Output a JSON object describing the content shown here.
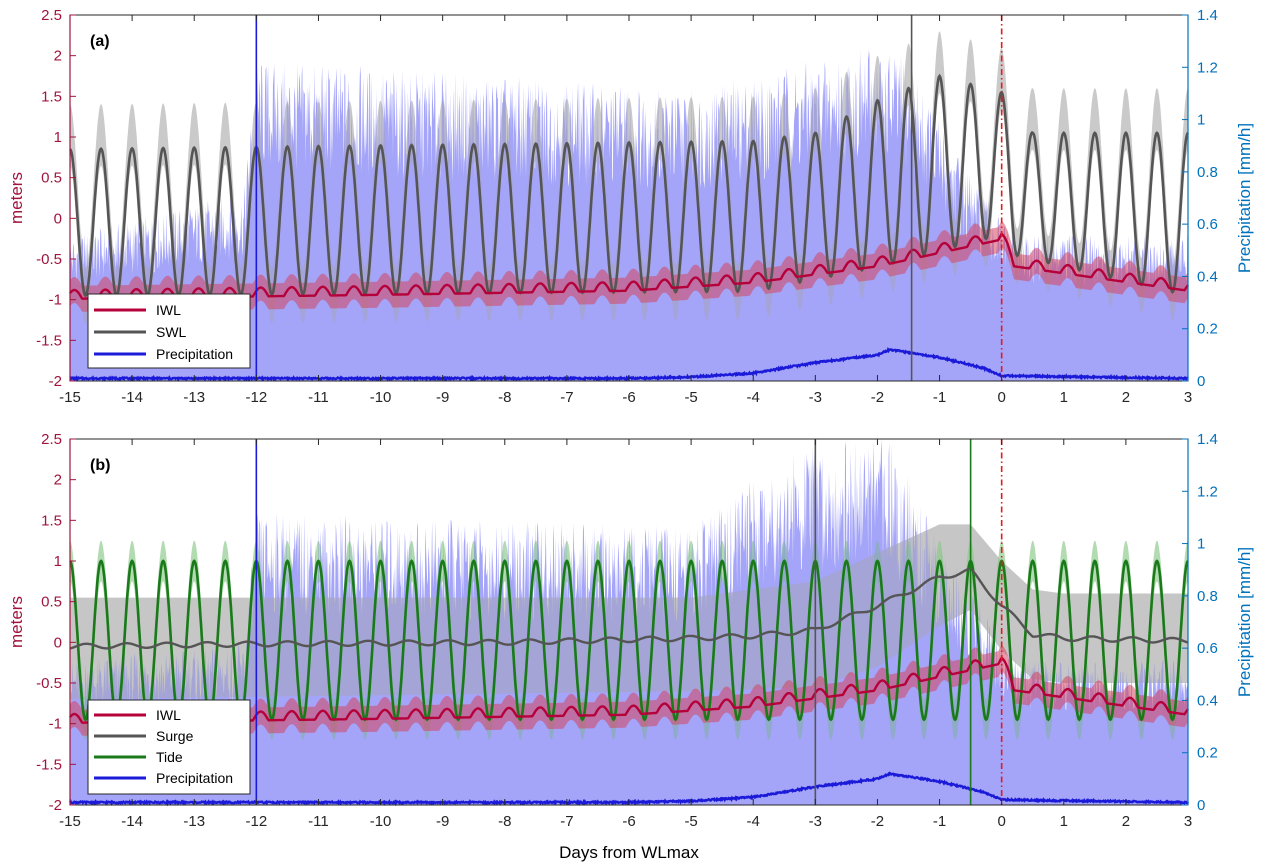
{
  "colors": {
    "iwl": "#b5003a",
    "iwl_band": "#d4465e",
    "swl": "#555555",
    "swl_band": "#b8b8b8",
    "precip": "#1a1ad8",
    "precip_band": "#7f7ff5",
    "tide": "#1a7a1a",
    "tide_band": "#88c888",
    "left_axis": "#a0153e",
    "right_axis": "#0072bd",
    "red_vline": "#e41a1c"
  },
  "figure": {
    "xlabel": "Days from WLmax",
    "ylabel_left": "meters",
    "ylabel_right": "Precipitation [mm/h]"
  },
  "chart_data": [
    {
      "type": "line",
      "panel": "(a)",
      "xlim": [
        -15,
        3
      ],
      "ylim_left": [
        -2,
        2.5
      ],
      "ylim_right": [
        0,
        1.4
      ],
      "xticks": [
        "-15",
        "-14",
        "-13",
        "-12",
        "-11",
        "-10",
        "-9",
        "-8",
        "-7",
        "-6",
        "-5",
        "-4",
        "-3",
        "-2",
        "-1",
        "0",
        "1",
        "2",
        "3"
      ],
      "yticks_left": [
        "-2",
        "-1.5",
        "-1",
        "-0.5",
        "0",
        "0.5",
        "1",
        "1.5",
        "2",
        "2.5"
      ],
      "yticks_right": [
        "0",
        "0.2",
        "0.4",
        "0.6",
        "0.8",
        "1",
        "1.2",
        "1.4"
      ],
      "legend": [
        "IWL",
        "SWL",
        "Precipitation"
      ],
      "legend_position": "bottom-left",
      "vlines": [
        {
          "series": "Precipitation",
          "x": -12
        },
        {
          "series": "SWL",
          "x": -1.45
        },
        {
          "series": "IWL",
          "x": 0,
          "style": "dash-dot"
        }
      ],
      "series": [
        {
          "name": "IWL",
          "axis": "left",
          "mean_trend": {
            "x": [
              -15,
              -10,
              -6,
              -4,
              -2,
              0,
              0.2,
              3
            ],
            "y": [
              -0.95,
              -0.9,
              -0.85,
              -0.75,
              -0.55,
              -0.22,
              -0.55,
              -0.85
            ]
          },
          "band_halfwidth": 0.16,
          "ripple_amplitude": 0.12
        },
        {
          "name": "SWL",
          "axis": "left",
          "tide_period_days": 0.5,
          "trough_levels": {
            "x": [
              -15,
              -4,
              -2,
              0,
              0.2,
              3
            ],
            "y": [
              -0.95,
              -0.9,
              -0.6,
              -0.2,
              -0.45,
              -0.95
            ]
          },
          "peak_levels": {
            "x": [
              -15,
              -4,
              -3,
              -2,
              -1,
              0,
              0.5,
              3
            ],
            "y": [
              0.85,
              0.95,
              1.05,
              1.45,
              1.75,
              1.55,
              1.05,
              1.05
            ]
          },
          "band_upper_offset": 0.55,
          "band_lower_offset": 0.35
        },
        {
          "name": "Precipitation",
          "axis": "right",
          "median": {
            "x": [
              -15,
              -6,
              -5,
              -4,
              -3,
              -2,
              -1.8,
              -1,
              -0.3,
              0,
              3
            ],
            "y": [
              0.01,
              0.01,
              0.015,
              0.03,
              0.07,
              0.1,
              0.12,
              0.09,
              0.05,
              0.02,
              0.01
            ]
          },
          "band_low": 0,
          "band_high": {
            "x": [
              -15,
              -12.2,
              -12,
              -5,
              -2,
              -1.5,
              -0.5,
              0,
              0.3,
              3
            ],
            "y": [
              0.5,
              0.65,
              1.1,
              1.0,
              1.15,
              1.1,
              0.7,
              0.55,
              0.5,
              0.5
            ]
          }
        }
      ]
    },
    {
      "type": "line",
      "panel": "(b)",
      "xlim": [
        -15,
        3
      ],
      "ylim_left": [
        -2,
        2.5
      ],
      "ylim_right": [
        0,
        1.4
      ],
      "xticks": [
        "-15",
        "-14",
        "-13",
        "-12",
        "-11",
        "-10",
        "-9",
        "-8",
        "-7",
        "-6",
        "-5",
        "-4",
        "-3",
        "-2",
        "-1",
        "0",
        "1",
        "2",
        "3"
      ],
      "yticks_left": [
        "-2",
        "-1.5",
        "-1",
        "-0.5",
        "0",
        "0.5",
        "1",
        "1.5",
        "2",
        "2.5"
      ],
      "yticks_right": [
        "0",
        "0.2",
        "0.4",
        "0.6",
        "0.8",
        "1",
        "1.2",
        "1.4"
      ],
      "legend": [
        "IWL",
        "Surge",
        "Tide",
        "Precipitation"
      ],
      "legend_position": "bottom-left",
      "vlines": [
        {
          "series": "Precipitation",
          "x": -12
        },
        {
          "series": "Surge",
          "x": -3
        },
        {
          "series": "Tide",
          "x": -0.5
        },
        {
          "series": "IWL",
          "x": 0,
          "style": "dash-dot"
        }
      ],
      "series": [
        {
          "name": "IWL",
          "axis": "left",
          "mean_trend": {
            "x": [
              -15,
              -10,
              -6,
              -4,
              -2,
              0,
              0.2,
              3
            ],
            "y": [
              -0.95,
              -0.9,
              -0.85,
              -0.75,
              -0.55,
              -0.22,
              -0.55,
              -0.85
            ]
          },
          "band_halfwidth": 0.16,
          "ripple_amplitude": 0.12
        },
        {
          "name": "Surge",
          "axis": "left",
          "median": {
            "x": [
              -15,
              -12,
              -8,
              -5,
              -4,
              -3,
              -2,
              -1,
              -0.5,
              0,
              0.5,
              1,
              3
            ],
            "y": [
              -0.05,
              -0.02,
              0,
              0.05,
              0.08,
              0.15,
              0.45,
              0.8,
              0.88,
              0.45,
              0.1,
              0.05,
              0.02
            ]
          },
          "band_high": {
            "x": [
              -15,
              -5,
              -3,
              -2,
              -1,
              -0.5,
              0,
              0.5,
              1,
              3
            ],
            "y": [
              0.55,
              0.55,
              0.75,
              1.1,
              1.45,
              1.45,
              1.0,
              0.65,
              0.6,
              0.6
            ]
          },
          "band_low": {
            "x": [
              -15,
              -5,
              -3,
              -2,
              -1,
              -0.5,
              0,
              0.5,
              1,
              3
            ],
            "y": [
              -0.7,
              -0.6,
              -0.55,
              -0.3,
              0.2,
              0.4,
              -0.1,
              -0.45,
              -0.5,
              -0.5
            ]
          }
        },
        {
          "name": "Tide",
          "axis": "left",
          "tide_period_days": 0.5,
          "peak": 1.0,
          "trough": -0.95,
          "band_offset": 0.25
        },
        {
          "name": "Precipitation",
          "axis": "right",
          "median": {
            "x": [
              -15,
              -6,
              -5,
              -4,
              -3,
              -2,
              -1.8,
              -1,
              -0.3,
              0,
              3
            ],
            "y": [
              0.01,
              0.01,
              0.015,
              0.03,
              0.07,
              0.1,
              0.12,
              0.09,
              0.05,
              0.02,
              0.01
            ]
          },
          "band_low": 0,
          "band_high": {
            "x": [
              -15,
              -12.2,
              -12,
              -5,
              -3.5,
              -2.5,
              -1.8,
              -1,
              -0.3,
              0,
              0.3,
              3
            ],
            "y": [
              0.5,
              0.55,
              1.0,
              0.95,
              1.2,
              1.25,
              1.25,
              0.9,
              0.7,
              0.55,
              0.5,
              0.5
            ]
          }
        }
      ]
    }
  ]
}
